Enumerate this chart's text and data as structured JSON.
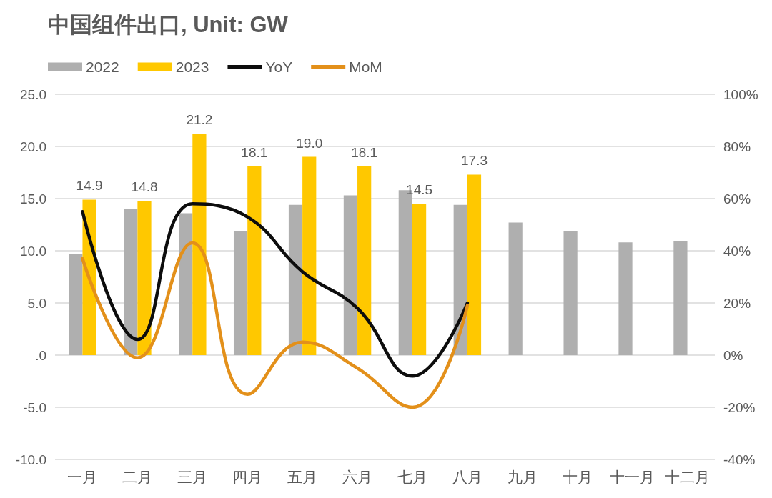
{
  "chart_data": {
    "type": "bar",
    "title": "中国组件出口, Unit: GW",
    "categories": [
      "一月",
      "二月",
      "三月",
      "四月",
      "五月",
      "六月",
      "七月",
      "八月",
      "九月",
      "十月",
      "十一月",
      "十二月"
    ],
    "series": [
      {
        "name": "2022",
        "color": "#afafaf",
        "values": [
          9.7,
          14.0,
          13.6,
          11.9,
          14.4,
          15.3,
          15.8,
          14.4,
          12.7,
          11.9,
          10.8,
          10.9
        ]
      },
      {
        "name": "2023",
        "color": "#ffc800",
        "values": [
          14.9,
          14.8,
          21.2,
          18.1,
          19.0,
          18.1,
          14.5,
          17.3,
          null,
          null,
          null,
          null
        ],
        "value_labels": [
          "14.9",
          "14.8",
          "21.2",
          "18.1",
          "19.0",
          "18.1",
          "14.5",
          "17.3",
          null,
          null,
          null,
          null
        ]
      },
      {
        "name": "YoY",
        "type": "line",
        "axis": "y2",
        "color": "#0d0d0d",
        "values": [
          55,
          6,
          58,
          53,
          32,
          18,
          -8,
          20,
          null,
          null,
          null,
          null
        ]
      },
      {
        "name": "MoM",
        "type": "line",
        "axis": "y2",
        "color": "#e3901a",
        "values": [
          37,
          -1,
          43,
          -15,
          5,
          -5,
          -20,
          19,
          null,
          null,
          null,
          null
        ]
      }
    ],
    "ylim": [
      -10,
      25
    ],
    "yticks": [
      {
        "value": -10,
        "label": "-10.0"
      },
      {
        "value": -5,
        "label": "-5.0"
      },
      {
        "value": 0,
        "label": ".0"
      },
      {
        "value": 5,
        "label": "5.0"
      },
      {
        "value": 10,
        "label": "10.0"
      },
      {
        "value": 15,
        "label": "15.0"
      },
      {
        "value": 20,
        "label": "20.0"
      },
      {
        "value": 25,
        "label": "25.0"
      }
    ],
    "y2lim": [
      -40,
      100
    ],
    "y2ticks": [
      {
        "value": -40,
        "label": "-40%"
      },
      {
        "value": -20,
        "label": "-20%"
      },
      {
        "value": 0,
        "label": "0%"
      },
      {
        "value": 20,
        "label": "20%"
      },
      {
        "value": 40,
        "label": "40%"
      },
      {
        "value": 60,
        "label": "60%"
      },
      {
        "value": 80,
        "label": "80%"
      },
      {
        "value": 100,
        "label": "100%"
      }
    ],
    "grid": "y",
    "legend": "top left",
    "marker": "none",
    "line_style": "solid"
  }
}
